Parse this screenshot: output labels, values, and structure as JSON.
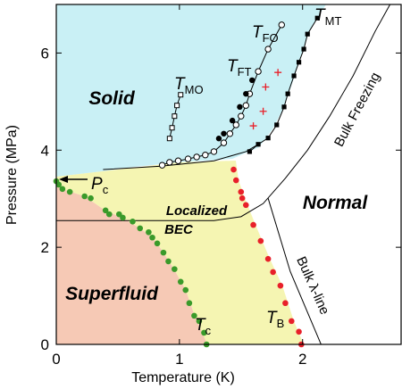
{
  "chart_data": {
    "type": "phase",
    "x_label": "Temperature (K)",
    "y_label": "Pressure (MPa)",
    "xlim": [
      0,
      2.8
    ],
    "ylim": [
      0,
      7
    ],
    "xticks": [
      0,
      1,
      2
    ],
    "yticks": [
      0,
      2,
      4,
      6
    ],
    "regions": [
      "Solid",
      "Localized",
      "BEC",
      "Superfluid",
      "Normal"
    ],
    "annotations": [
      "Bulk Freezing",
      "Bulk λ-line"
    ],
    "pc_label": {
      "main": "P",
      "sub": "c"
    },
    "boundaries": [
      {
        "color": "#000000",
        "x": [
          0,
          1.28,
          1.5,
          1.68,
          1.86,
          2.04,
          2.22,
          2.41,
          2.59,
          2.71
        ],
        "y": [
          2.55,
          2.55,
          2.63,
          2.9,
          3.42,
          4.0,
          4.7,
          5.53,
          6.45,
          7.0
        ]
      },
      {
        "color": "#000000",
        "x": [
          1.72,
          1.9,
          2.15
        ],
        "y": [
          3.01,
          1.5,
          0
        ]
      },
      {
        "color": "#000000",
        "x": [
          0.38,
          0.85,
          1.28,
          1.54,
          1.64
        ],
        "y": [
          3.6,
          3.67,
          3.78,
          3.97,
          4.12
        ]
      }
    ],
    "series": [
      {
        "label": {
          "main": "T",
          "sub": "c"
        },
        "marker": "dot",
        "color": "#3a9a2a",
        "line": false,
        "x": [
          0,
          0.02,
          0.05,
          0.11,
          0.23,
          0.28,
          0.4,
          0.43,
          0.51,
          0.54,
          0.62,
          0.68,
          0.75,
          0.78,
          0.82,
          0.87,
          0.91,
          0.96,
          1.01,
          1.05,
          1.08,
          1.12,
          1.16,
          1.2,
          1.22
        ],
        "values": [
          3.36,
          3.29,
          3.2,
          3.14,
          3.05,
          3.01,
          2.76,
          2.68,
          2.68,
          2.61,
          2.53,
          2.39,
          2.31,
          2.2,
          2.08,
          1.89,
          1.71,
          1.55,
          1.29,
          1.12,
          0.85,
          0.59,
          0.48,
          0.24,
          0
        ]
      },
      {
        "label": {
          "main": "T",
          "sub": "B"
        },
        "marker": "dot",
        "color": "#e8202a",
        "line": false,
        "x": [
          1.44,
          1.46,
          1.5,
          1.51,
          1.54,
          1.6,
          1.66,
          1.72,
          1.76,
          1.82,
          1.86,
          1.91,
          1.97,
          1.99
        ],
        "values": [
          3.6,
          3.38,
          3.14,
          3.01,
          2.87,
          2.46,
          2.13,
          1.76,
          1.49,
          1.21,
          0.85,
          0.48,
          0.26,
          0
        ]
      },
      {
        "label": {
          "main": "T",
          "sub": "MT"
        },
        "marker": "square-filled",
        "color": "#000000",
        "line": true,
        "x": [
          1.57,
          1.64,
          1.72,
          1.79,
          1.85,
          1.88,
          1.93,
          1.97,
          2.01,
          2.04,
          2.12
        ],
        "values": [
          3.97,
          4.12,
          4.25,
          4.52,
          4.89,
          5.16,
          5.53,
          5.81,
          6.08,
          6.39,
          6.72
        ]
      },
      {
        "label": {
          "main": "T",
          "sub": "FO"
        },
        "marker": "circle-open",
        "color": "#000000",
        "line": true,
        "x": [
          0.86,
          0.92,
          0.99,
          1.07,
          1.14,
          1.21,
          1.28,
          1.36,
          1.41,
          1.46,
          1.5,
          1.54,
          1.57,
          1.64,
          1.72,
          1.83
        ],
        "values": [
          3.69,
          3.75,
          3.78,
          3.82,
          3.86,
          3.9,
          3.97,
          4.15,
          4.34,
          4.52,
          4.7,
          4.92,
          5.16,
          5.62,
          6.08,
          6.58
        ]
      },
      {
        "label": {
          "main": "T",
          "sub": "FT"
        },
        "marker": "circle-filled",
        "color": "#000000",
        "line": false,
        "x": [
          1.32,
          1.36,
          1.43,
          1.49,
          1.54,
          1.59
        ],
        "values": [
          4.24,
          4.34,
          4.61,
          4.89,
          5.16,
          5.44
        ]
      },
      {
        "label": {
          "main": "T",
          "sub": "MO"
        },
        "marker": "square-open",
        "color": "#000000",
        "line": true,
        "x": [
          0.92,
          0.94,
          0.96,
          0.98,
          1.01
        ],
        "values": [
          4.24,
          4.46,
          4.7,
          4.92,
          5.14
        ]
      },
      {
        "marker": "cross",
        "color": "#e8202a",
        "line": false,
        "x": [
          1.6,
          1.68,
          1.7,
          1.8
        ],
        "values": [
          4.5,
          4.8,
          5.3,
          5.6
        ]
      }
    ]
  }
}
